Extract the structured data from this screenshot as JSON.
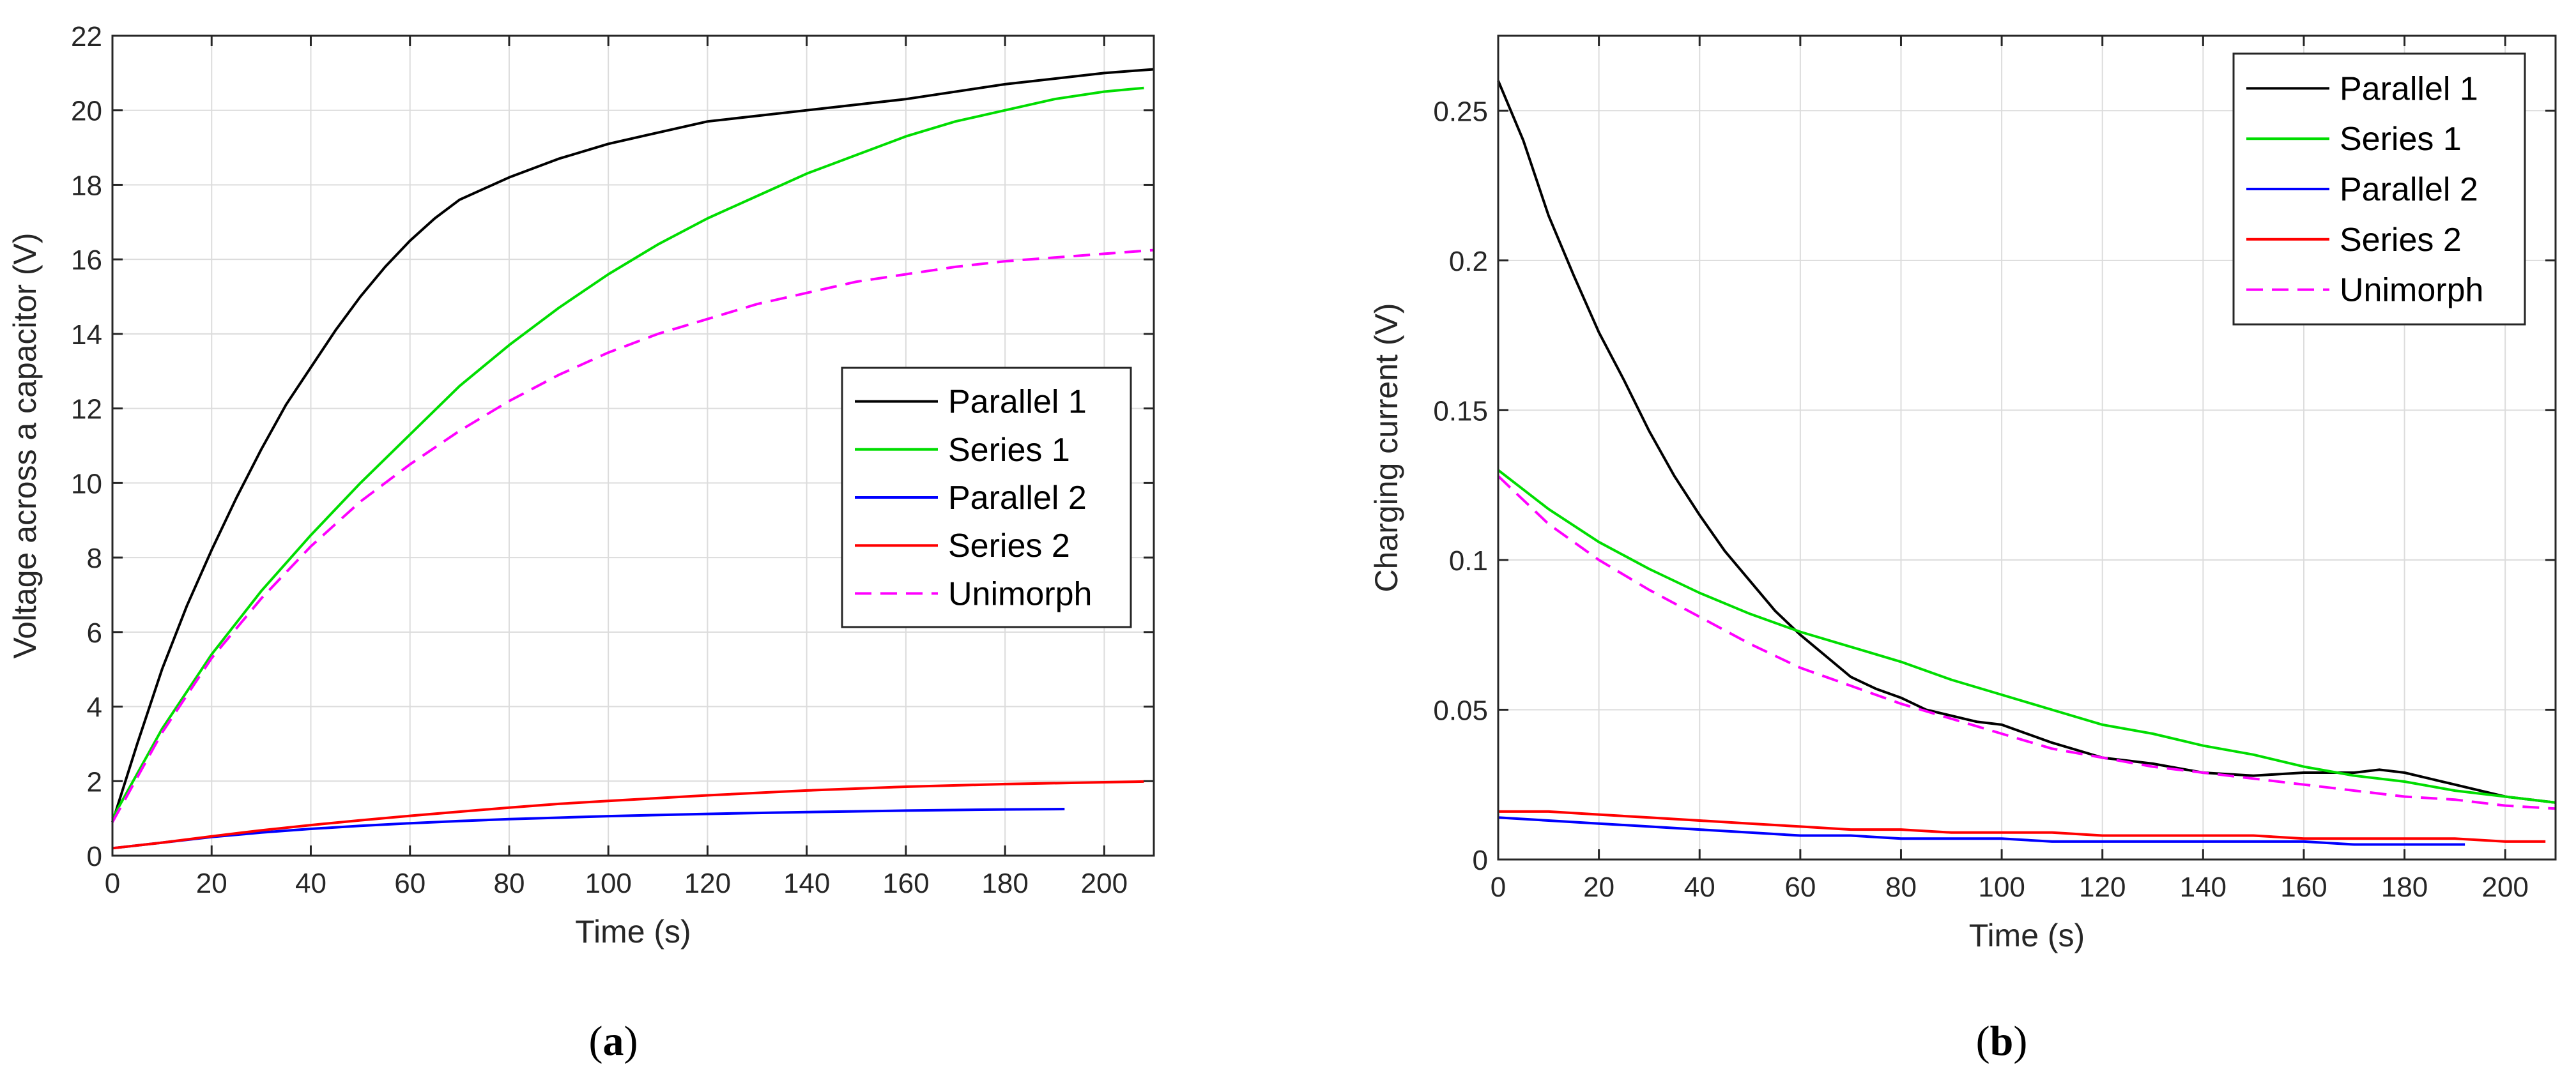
{
  "chart_data": [
    {
      "type": "line",
      "panel_label_open": "(",
      "panel_label_letter": "a",
      "panel_label_close": ")",
      "xlabel": "Time (s)",
      "ylabel": "Voltage across a capacitor (V)",
      "xlim": [
        0,
        210
      ],
      "ylim": [
        0,
        22
      ],
      "xticks": [
        0,
        20,
        40,
        60,
        80,
        100,
        120,
        140,
        160,
        180,
        200
      ],
      "yticks": [
        0,
        2,
        4,
        6,
        8,
        10,
        12,
        14,
        16,
        18,
        20,
        22
      ],
      "grid": true,
      "legend_position": "center-right",
      "series": [
        {
          "name": "Parallel 1",
          "color": "#000000",
          "dash": "solid",
          "points": [
            [
              0,
              0.9
            ],
            [
              5,
              3.0
            ],
            [
              10,
              5.0
            ],
            [
              15,
              6.7
            ],
            [
              20,
              8.2
            ],
            [
              25,
              9.6
            ],
            [
              30,
              10.9
            ],
            [
              35,
              12.1
            ],
            [
              40,
              13.1
            ],
            [
              45,
              14.1
            ],
            [
              50,
              15.0
            ],
            [
              55,
              15.8
            ],
            [
              60,
              16.5
            ],
            [
              65,
              17.1
            ],
            [
              70,
              17.6
            ],
            [
              75,
              17.9
            ],
            [
              80,
              18.2
            ],
            [
              90,
              18.7
            ],
            [
              100,
              19.1
            ],
            [
              110,
              19.4
            ],
            [
              120,
              19.7
            ],
            [
              140,
              20.0
            ],
            [
              160,
              20.3
            ],
            [
              180,
              20.7
            ],
            [
              200,
              21.0
            ],
            [
              210,
              21.1
            ]
          ]
        },
        {
          "name": "Series 1",
          "color": "#00dd00",
          "dash": "solid",
          "points": [
            [
              0,
              1.0
            ],
            [
              10,
              3.4
            ],
            [
              20,
              5.4
            ],
            [
              30,
              7.1
            ],
            [
              40,
              8.6
            ],
            [
              50,
              10.0
            ],
            [
              60,
              11.3
            ],
            [
              70,
              12.6
            ],
            [
              80,
              13.7
            ],
            [
              90,
              14.7
            ],
            [
              100,
              15.6
            ],
            [
              110,
              16.4
            ],
            [
              120,
              17.1
            ],
            [
              130,
              17.7
            ],
            [
              140,
              18.3
            ],
            [
              150,
              18.8
            ],
            [
              160,
              19.3
            ],
            [
              170,
              19.7
            ],
            [
              180,
              20.0
            ],
            [
              190,
              20.3
            ],
            [
              200,
              20.5
            ],
            [
              208,
              20.6
            ]
          ]
        },
        {
          "name": "Parallel 2",
          "color": "#0000ff",
          "dash": "solid",
          "points": [
            [
              0,
              0.2
            ],
            [
              10,
              0.35
            ],
            [
              20,
              0.5
            ],
            [
              30,
              0.62
            ],
            [
              40,
              0.72
            ],
            [
              50,
              0.8
            ],
            [
              60,
              0.87
            ],
            [
              70,
              0.93
            ],
            [
              80,
              0.98
            ],
            [
              90,
              1.02
            ],
            [
              100,
              1.06
            ],
            [
              120,
              1.12
            ],
            [
              140,
              1.17
            ],
            [
              160,
              1.21
            ],
            [
              180,
              1.24
            ],
            [
              192,
              1.25
            ]
          ]
        },
        {
          "name": "Series 2",
          "color": "#ff0000",
          "dash": "solid",
          "points": [
            [
              0,
              0.2
            ],
            [
              10,
              0.35
            ],
            [
              20,
              0.52
            ],
            [
              30,
              0.68
            ],
            [
              40,
              0.82
            ],
            [
              50,
              0.95
            ],
            [
              60,
              1.07
            ],
            [
              70,
              1.18
            ],
            [
              80,
              1.29
            ],
            [
              90,
              1.39
            ],
            [
              100,
              1.47
            ],
            [
              120,
              1.62
            ],
            [
              140,
              1.75
            ],
            [
              160,
              1.85
            ],
            [
              180,
              1.92
            ],
            [
              200,
              1.97
            ],
            [
              208,
              1.99
            ]
          ]
        },
        {
          "name": "Unimorph",
          "color": "#ff00ff",
          "dash": "dashed",
          "points": [
            [
              0,
              0.9
            ],
            [
              10,
              3.3
            ],
            [
              20,
              5.3
            ],
            [
              30,
              6.9
            ],
            [
              40,
              8.3
            ],
            [
              50,
              9.5
            ],
            [
              60,
              10.5
            ],
            [
              70,
              11.4
            ],
            [
              80,
              12.2
            ],
            [
              90,
              12.9
            ],
            [
              100,
              13.5
            ],
            [
              110,
              14.0
            ],
            [
              120,
              14.4
            ],
            [
              130,
              14.8
            ],
            [
              140,
              15.1
            ],
            [
              150,
              15.4
            ],
            [
              160,
              15.6
            ],
            [
              170,
              15.8
            ],
            [
              180,
              15.95
            ],
            [
              190,
              16.05
            ],
            [
              200,
              16.15
            ],
            [
              210,
              16.25
            ]
          ]
        }
      ]
    },
    {
      "type": "line",
      "panel_label_open": "(",
      "panel_label_letter": "b",
      "panel_label_close": ")",
      "xlabel": "Time (s)",
      "ylabel": "Charging current (V)",
      "xlim": [
        0,
        210
      ],
      "ylim": [
        0,
        0.275
      ],
      "xticks": [
        0,
        20,
        40,
        60,
        80,
        100,
        120,
        140,
        160,
        180,
        200
      ],
      "yticks": [
        0,
        0.05,
        0.1,
        0.15,
        0.2,
        0.25
      ],
      "ytick_labels": [
        "0",
        "0.05",
        "0.1",
        "0.15",
        "0.2",
        "0.25"
      ],
      "grid": true,
      "legend_position": "top-right",
      "series": [
        {
          "name": "Parallel 1",
          "color": "#000000",
          "dash": "solid",
          "points": [
            [
              0,
              0.26
            ],
            [
              5,
              0.24
            ],
            [
              10,
              0.215
            ],
            [
              15,
              0.195
            ],
            [
              20,
              0.176
            ],
            [
              25,
              0.16
            ],
            [
              30,
              0.143
            ],
            [
              35,
              0.128
            ],
            [
              40,
              0.115
            ],
            [
              45,
              0.103
            ],
            [
              50,
              0.093
            ],
            [
              55,
              0.083
            ],
            [
              60,
              0.075
            ],
            [
              65,
              0.068
            ],
            [
              70,
              0.061
            ],
            [
              75,
              0.057
            ],
            [
              80,
              0.054
            ],
            [
              85,
              0.05
            ],
            [
              90,
              0.048
            ],
            [
              95,
              0.046
            ],
            [
              100,
              0.045
            ],
            [
              110,
              0.039
            ],
            [
              120,
              0.034
            ],
            [
              130,
              0.032
            ],
            [
              140,
              0.029
            ],
            [
              150,
              0.028
            ],
            [
              160,
              0.029
            ],
            [
              170,
              0.029
            ],
            [
              175,
              0.03
            ],
            [
              180,
              0.029
            ],
            [
              190,
              0.025
            ],
            [
              200,
              0.021
            ],
            [
              210,
              0.019
            ]
          ]
        },
        {
          "name": "Series 1",
          "color": "#00dd00",
          "dash": "solid",
          "points": [
            [
              0,
              0.13
            ],
            [
              10,
              0.117
            ],
            [
              20,
              0.106
            ],
            [
              30,
              0.097
            ],
            [
              40,
              0.089
            ],
            [
              50,
              0.082
            ],
            [
              60,
              0.076
            ],
            [
              70,
              0.071
            ],
            [
              80,
              0.066
            ],
            [
              90,
              0.06
            ],
            [
              100,
              0.055
            ],
            [
              110,
              0.05
            ],
            [
              120,
              0.045
            ],
            [
              130,
              0.042
            ],
            [
              140,
              0.038
            ],
            [
              150,
              0.035
            ],
            [
              160,
              0.031
            ],
            [
              170,
              0.028
            ],
            [
              180,
              0.026
            ],
            [
              190,
              0.023
            ],
            [
              200,
              0.021
            ],
            [
              210,
              0.019
            ]
          ]
        },
        {
          "name": "Parallel 2",
          "color": "#0000ff",
          "dash": "solid",
          "points": [
            [
              0,
              0.014
            ],
            [
              10,
              0.013
            ],
            [
              20,
              0.012
            ],
            [
              30,
              0.011
            ],
            [
              40,
              0.01
            ],
            [
              50,
              0.009
            ],
            [
              60,
              0.008
            ],
            [
              70,
              0.008
            ],
            [
              80,
              0.007
            ],
            [
              90,
              0.007
            ],
            [
              100,
              0.007
            ],
            [
              110,
              0.006
            ],
            [
              120,
              0.006
            ],
            [
              130,
              0.006
            ],
            [
              140,
              0.006
            ],
            [
              150,
              0.006
            ],
            [
              160,
              0.006
            ],
            [
              170,
              0.005
            ],
            [
              180,
              0.005
            ],
            [
              192,
              0.005
            ]
          ]
        },
        {
          "name": "Series 2",
          "color": "#ff0000",
          "dash": "solid",
          "points": [
            [
              0,
              0.016
            ],
            [
              10,
              0.016
            ],
            [
              20,
              0.015
            ],
            [
              30,
              0.014
            ],
            [
              40,
              0.013
            ],
            [
              50,
              0.012
            ],
            [
              60,
              0.011
            ],
            [
              70,
              0.01
            ],
            [
              80,
              0.01
            ],
            [
              90,
              0.009
            ],
            [
              100,
              0.009
            ],
            [
              110,
              0.009
            ],
            [
              120,
              0.008
            ],
            [
              130,
              0.008
            ],
            [
              140,
              0.008
            ],
            [
              150,
              0.008
            ],
            [
              160,
              0.007
            ],
            [
              170,
              0.007
            ],
            [
              180,
              0.007
            ],
            [
              190,
              0.007
            ],
            [
              200,
              0.006
            ],
            [
              208,
              0.006
            ]
          ]
        },
        {
          "name": "Unimorph",
          "color": "#ff00ff",
          "dash": "dashed",
          "points": [
            [
              0,
              0.128
            ],
            [
              10,
              0.112
            ],
            [
              20,
              0.1
            ],
            [
              30,
              0.09
            ],
            [
              40,
              0.081
            ],
            [
              50,
              0.072
            ],
            [
              60,
              0.064
            ],
            [
              70,
              0.058
            ],
            [
              80,
              0.052
            ],
            [
              90,
              0.047
            ],
            [
              100,
              0.042
            ],
            [
              110,
              0.037
            ],
            [
              120,
              0.034
            ],
            [
              130,
              0.031
            ],
            [
              140,
              0.029
            ],
            [
              150,
              0.027
            ],
            [
              160,
              0.025
            ],
            [
              170,
              0.023
            ],
            [
              180,
              0.021
            ],
            [
              190,
              0.02
            ],
            [
              200,
              0.018
            ],
            [
              210,
              0.017
            ]
          ]
        }
      ]
    }
  ]
}
